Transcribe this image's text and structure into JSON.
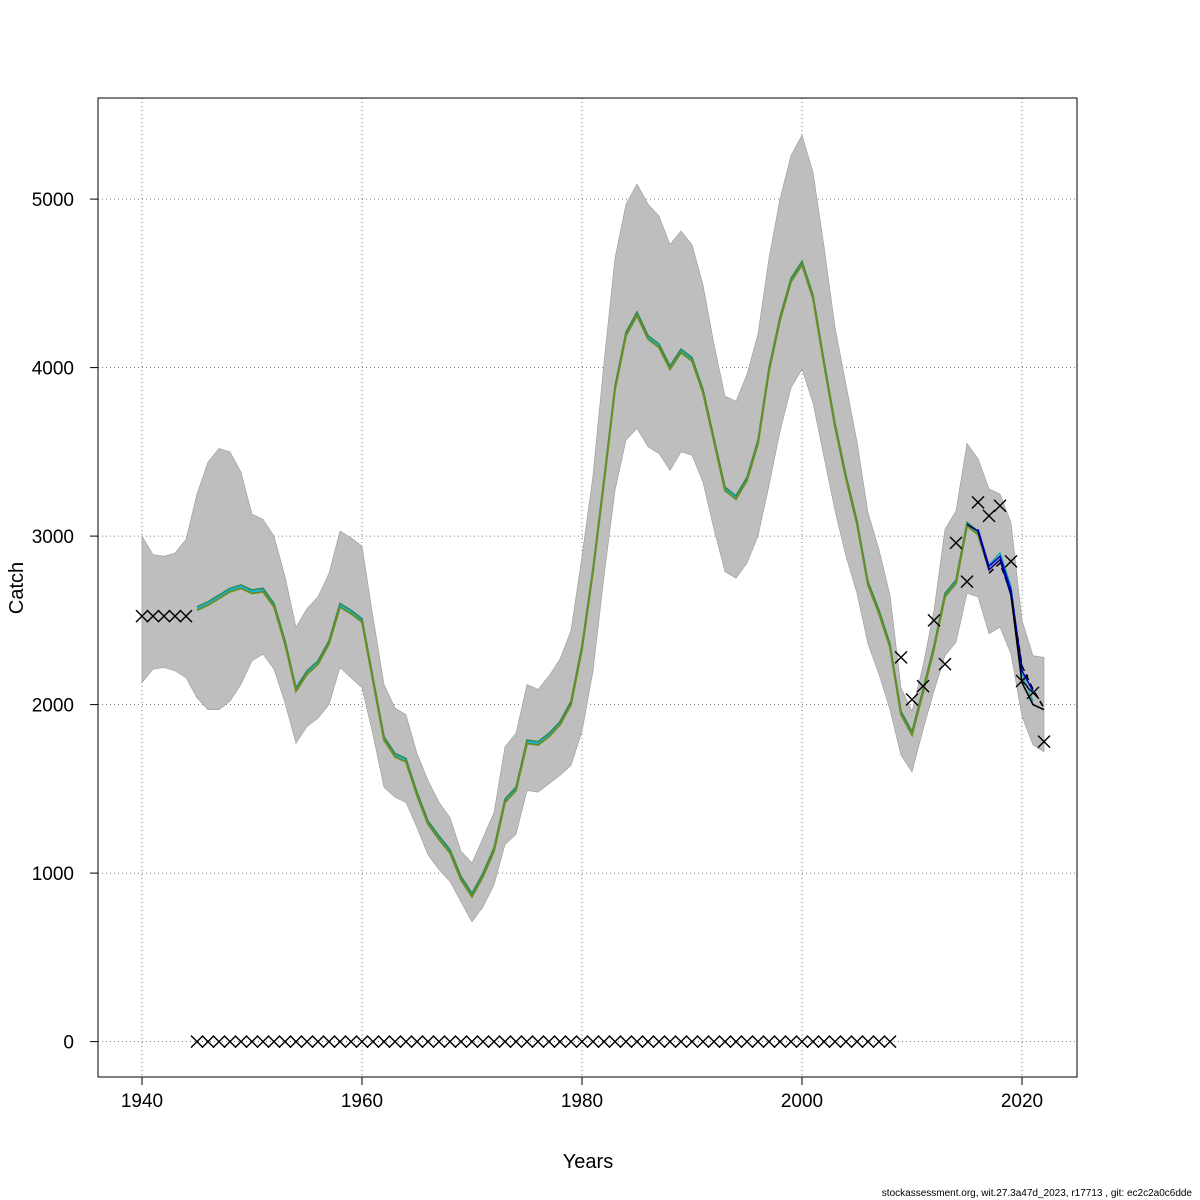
{
  "chart_data": {
    "type": "line",
    "xlabel": "Years",
    "ylabel": "Catch",
    "xlim": [
      1936,
      2025
    ],
    "ylim": [
      -210,
      5600
    ],
    "x_ticks": [
      1940,
      1960,
      1980,
      2000,
      2020
    ],
    "y_ticks": [
      0,
      1000,
      2000,
      3000,
      4000,
      5000
    ],
    "grid": true,
    "footnote": "stockassessment.org, wit.27.3a47d_2023, r17713 , git: ec2c2a0c6dde",
    "colors": {
      "band": "#bebebe",
      "main_line": "#6b8e23",
      "retro_lines": [
        "#00bfff",
        "#2e8b57",
        "#0000cd",
        "#20b2aa",
        "#000080"
      ],
      "observations": "#000000"
    },
    "band": {
      "x": [
        1940,
        1941,
        1942,
        1943,
        1944,
        1945,
        1946,
        1947,
        1948,
        1949,
        1950,
        1951,
        1952,
        1953,
        1954,
        1955,
        1956,
        1957,
        1958,
        1959,
        1960,
        1961,
        1962,
        1963,
        1964,
        1965,
        1966,
        1967,
        1968,
        1969,
        1970,
        1971,
        1972,
        1973,
        1974,
        1975,
        1976,
        1977,
        1978,
        1979,
        1980,
        1981,
        1982,
        1983,
        1984,
        1985,
        1986,
        1987,
        1988,
        1989,
        1990,
        1991,
        1992,
        1993,
        1994,
        1995,
        1996,
        1997,
        1998,
        1999,
        2000,
        2001,
        2002,
        2003,
        2004,
        2005,
        2006,
        2007,
        2008,
        2009,
        2010,
        2011,
        2012,
        2013,
        2014,
        2015,
        2016,
        2017,
        2018,
        2019,
        2020,
        2021,
        2022
      ],
      "upper": [
        3000,
        2890,
        2880,
        2900,
        2980,
        3250,
        3440,
        3520,
        3500,
        3380,
        3130,
        3100,
        3000,
        2760,
        2460,
        2570,
        2640,
        2780,
        3030,
        2990,
        2940,
        2520,
        2120,
        1980,
        1940,
        1710,
        1550,
        1420,
        1330,
        1130,
        1060,
        1210,
        1360,
        1750,
        1830,
        2120,
        2090,
        2170,
        2270,
        2440,
        2880,
        3360,
        4030,
        4650,
        4970,
        5090,
        4970,
        4900,
        4730,
        4810,
        4730,
        4490,
        4140,
        3830,
        3800,
        3960,
        4200,
        4650,
        5000,
        5260,
        5380,
        5160,
        4720,
        4240,
        3900,
        3560,
        3140,
        2920,
        2650,
        2100,
        1960,
        2230,
        2560,
        3040,
        3150,
        3550,
        3460,
        3280,
        3250,
        3080,
        2500,
        2290,
        2280
      ],
      "lower": [
        2130,
        2210,
        2220,
        2200,
        2160,
        2040,
        1970,
        1970,
        2020,
        2120,
        2260,
        2300,
        2210,
        2010,
        1770,
        1870,
        1920,
        2000,
        2220,
        2160,
        2100,
        1820,
        1510,
        1450,
        1420,
        1270,
        1110,
        1020,
        950,
        830,
        710,
        800,
        930,
        1170,
        1230,
        1490,
        1480,
        1530,
        1580,
        1640,
        1840,
        2200,
        2760,
        3270,
        3570,
        3640,
        3530,
        3490,
        3390,
        3500,
        3480,
        3320,
        3040,
        2790,
        2750,
        2840,
        3000,
        3300,
        3620,
        3880,
        3990,
        3790,
        3470,
        3150,
        2880,
        2660,
        2360,
        2180,
        1970,
        1700,
        1600,
        1850,
        2080,
        2290,
        2370,
        2660,
        2640,
        2420,
        2460,
        2300,
        1930,
        1760,
        1720
      ]
    },
    "series": [
      {
        "x": [
          1945,
          1946,
          1947,
          1948,
          1949,
          1950,
          1951,
          1952,
          1953,
          1954,
          1955,
          1956,
          1957,
          1958,
          1959,
          1960,
          1961,
          1962,
          1963,
          1964,
          1965,
          1966,
          1967,
          1968,
          1969,
          1970,
          1971,
          1972,
          1973,
          1974,
          1975,
          1976,
          1977,
          1978,
          1979,
          1980,
          1981,
          1982,
          1983,
          1984,
          1985,
          1986,
          1987,
          1988,
          1989,
          1990,
          1991,
          1992,
          1993,
          1994,
          1995,
          1996,
          1997,
          1998,
          1999,
          2000,
          2001,
          2002,
          2003,
          2004,
          2005,
          2006,
          2007,
          2008,
          2009,
          2010,
          2011,
          2012,
          2013,
          2014,
          2015,
          2016,
          2017
        ],
        "values": [
          2560,
          2590,
          2630,
          2670,
          2690,
          2660,
          2670,
          2580,
          2360,
          2080,
          2180,
          2240,
          2360,
          2580,
          2540,
          2490,
          2140,
          1790,
          1690,
          1660,
          1460,
          1290,
          1200,
          1120,
          960,
          860,
          980,
          1130,
          1420,
          1490,
          1770,
          1760,
          1810,
          1880,
          2000,
          2330,
          2790,
          3320,
          3870,
          4190,
          4310,
          4170,
          4120,
          3990,
          4090,
          4040,
          3850,
          3560,
          3270,
          3220,
          3330,
          3550,
          3980,
          4280,
          4510,
          4610,
          4410,
          4020,
          3650,
          3340,
          3070,
          2710,
          2540,
          2340,
          1940,
          1820,
          2070,
          2330,
          2640,
          2720,
          3060,
          3010,
          2800
        ]
      }
    ],
    "observations": {
      "x": [
        1940,
        1941,
        1942,
        1943,
        1944,
        1945,
        1946,
        1947,
        1948,
        1949,
        1950,
        1951,
        1952,
        1953,
        1954,
        1955,
        1956,
        1957,
        1958,
        1959,
        1960,
        1961,
        1962,
        1963,
        1964,
        1965,
        1966,
        1967,
        1968,
        1969,
        1970,
        1971,
        1972,
        1973,
        1974,
        1975,
        1976,
        1977,
        1978,
        1979,
        1980,
        1981,
        1982,
        1983,
        1984,
        1985,
        1986,
        1987,
        1988,
        1989,
        1990,
        1991,
        1992,
        1993,
        1994,
        1995,
        1996,
        1997,
        1998,
        1999,
        2000,
        2001,
        2002,
        2003,
        2004,
        2005,
        2006,
        2007,
        2008,
        2009,
        2010,
        2011,
        2012,
        2013,
        2014,
        2015,
        2016,
        2017,
        2018,
        2019,
        2020,
        2021,
        2022
      ],
      "values": [
        2525,
        2525,
        2525,
        2525,
        2525,
        0,
        0,
        0,
        0,
        0,
        0,
        0,
        0,
        0,
        0,
        0,
        0,
        0,
        0,
        0,
        0,
        0,
        0,
        0,
        0,
        0,
        0,
        0,
        0,
        0,
        0,
        0,
        0,
        0,
        0,
        0,
        0,
        0,
        0,
        0,
        0,
        0,
        0,
        0,
        0,
        0,
        0,
        0,
        0,
        0,
        0,
        0,
        0,
        0,
        0,
        0,
        0,
        0,
        0,
        0,
        0,
        0,
        0,
        0,
        0,
        0,
        0,
        0,
        0,
        2280,
        2030,
        2110,
        2500,
        2240,
        2960,
        2730,
        3200,
        3120,
        3180,
        2850,
        2140,
        2070,
        1780
      ]
    }
  }
}
